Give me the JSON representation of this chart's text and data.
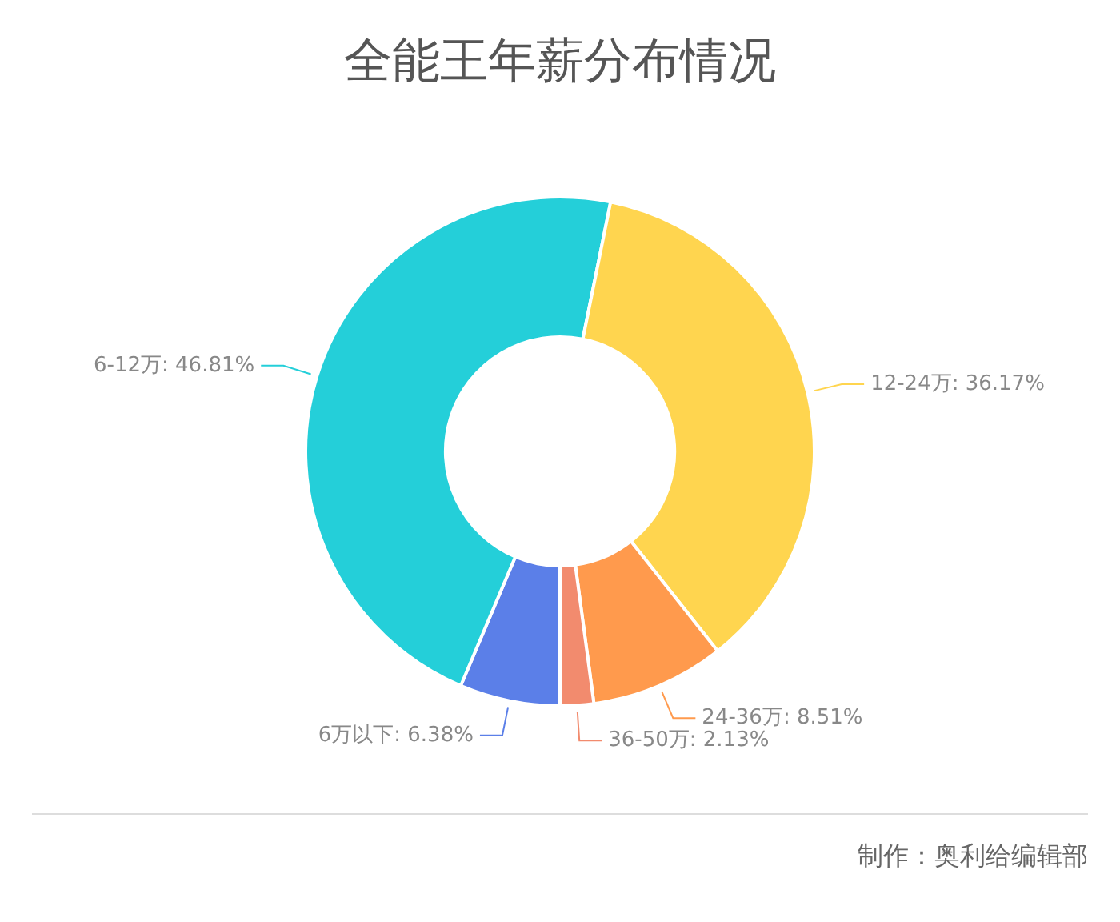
{
  "chart_data": {
    "type": "donut",
    "title": "全能王年薪分布情况",
    "categories": [
      "6万以下",
      "6-12万",
      "12-24万",
      "24-36万",
      "36-50万"
    ],
    "values": [
      6.38,
      46.81,
      36.17,
      8.51,
      2.13
    ],
    "value_labels": [
      "6.38%",
      "46.81%",
      "36.17%",
      "8.51%",
      "2.13%"
    ],
    "colors": [
      "#5b7fe8",
      "#24cfd9",
      "#ffd54f",
      "#ff9a4d",
      "#f28b6e"
    ],
    "legend": false,
    "annotations": [
      "制作：奥利给编辑部"
    ]
  }
}
